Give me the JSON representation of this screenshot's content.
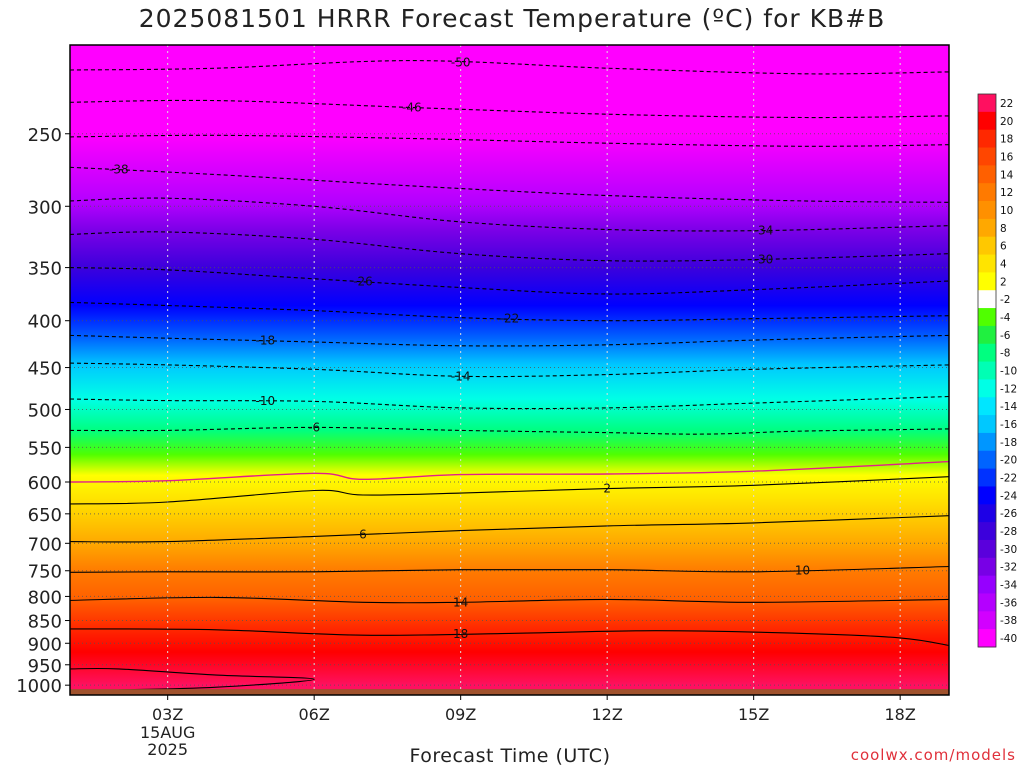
{
  "title": "2025081501 HRRR Forecast Temperature (ºC) for KB#B",
  "xlabel": "Forecast Time (UTC)",
  "credit": "coolwx.com/models",
  "chart_data": {
    "type": "heatmap",
    "title": "2025081501 HRRR Forecast Temperature (ºC) for KB#B",
    "xlabel": "Forecast Time (UTC)",
    "ylabel": "",
    "x_range_hours": [
      1,
      19
    ],
    "x_ticks": [
      {
        "hour": 3,
        "label": "03Z",
        "sub": [
          "15AUG",
          "2025"
        ]
      },
      {
        "hour": 6,
        "label": "06Z",
        "sub": []
      },
      {
        "hour": 9,
        "label": "09Z",
        "sub": []
      },
      {
        "hour": 12,
        "label": "12Z",
        "sub": []
      },
      {
        "hour": 15,
        "label": "15Z",
        "sub": []
      },
      {
        "hour": 18,
        "label": "18Z",
        "sub": []
      }
    ],
    "y_scale": "log-pressure",
    "y_range_hpa": [
      1025,
      200
    ],
    "y_ticks": [
      250,
      300,
      350,
      400,
      450,
      500,
      550,
      600,
      650,
      700,
      750,
      800,
      850,
      900,
      950,
      1000
    ],
    "colorbar": {
      "labels": [
        "22",
        "20",
        "18",
        "16",
        "14",
        "12",
        "10",
        "8",
        "6",
        "4",
        "2",
        "-2",
        "-4",
        "-6",
        "-8",
        "-10",
        "-12",
        "-14",
        "-16",
        "-18",
        "-20",
        "-22",
        "-24",
        "-26",
        "-28",
        "-30",
        "-32",
        "-34",
        "-36",
        "-38",
        "-40"
      ],
      "colors": [
        "#ff1060",
        "#ff0000",
        "#ff2800",
        "#ff4600",
        "#ff6000",
        "#ff7a00",
        "#ff9000",
        "#ffa800",
        "#ffc800",
        "#ffe400",
        "#ffff00",
        "#ffffff",
        "#50ff00",
        "#20f040",
        "#00ff80",
        "#00ffb4",
        "#00ffe6",
        "#00e6ff",
        "#00c8ff",
        "#0096ff",
        "#0064ff",
        "#0032ff",
        "#0000ff",
        "#1e00e6",
        "#3c00dc",
        "#5a00dc",
        "#7800e6",
        "#9600ff",
        "#b400ff",
        "#d200ff",
        "#ff00ff"
      ]
    },
    "isotherms": [
      {
        "value": -50,
        "label": "-50",
        "label_hour": 9.0,
        "dashed": true,
        "levels": [
          [
            1,
            213
          ],
          [
            4,
            212
          ],
          [
            8,
            208
          ],
          [
            12,
            212
          ],
          [
            16,
            215
          ],
          [
            19,
            214
          ]
        ]
      },
      {
        "value": -46,
        "label": "-46",
        "label_hour": 8.0,
        "dashed": true,
        "levels": [
          [
            1,
            231
          ],
          [
            4,
            230
          ],
          [
            8,
            234
          ],
          [
            12,
            238
          ],
          [
            16,
            240
          ],
          [
            19,
            239
          ]
        ]
      },
      {
        "value": -42,
        "label": "",
        "label_hour": 0,
        "dashed": true,
        "levels": [
          [
            1,
            252
          ],
          [
            4,
            251
          ],
          [
            8,
            253
          ],
          [
            12,
            256
          ],
          [
            16,
            258
          ],
          [
            19,
            257
          ]
        ]
      },
      {
        "value": -38,
        "label": "-38",
        "label_hour": 2.0,
        "dashed": true,
        "levels": [
          [
            1,
            272
          ],
          [
            4,
            277
          ],
          [
            8,
            285
          ],
          [
            12,
            292
          ],
          [
            16,
            296
          ],
          [
            19,
            297
          ]
        ]
      },
      {
        "value": -34,
        "label": "-34",
        "label_hour": 15.2,
        "dashed": true,
        "levels": [
          [
            1,
            296
          ],
          [
            3,
            294
          ],
          [
            6,
            300
          ],
          [
            9,
            312
          ],
          [
            12,
            318
          ],
          [
            15,
            319
          ],
          [
            19,
            315
          ]
        ]
      },
      {
        "value": -30,
        "label": "-30",
        "label_hour": 15.2,
        "dashed": true,
        "levels": [
          [
            1,
            322
          ],
          [
            3,
            320
          ],
          [
            6,
            326
          ],
          [
            9,
            338
          ],
          [
            12,
            344
          ],
          [
            15,
            343
          ],
          [
            19,
            338
          ]
        ]
      },
      {
        "value": -26,
        "label": "-26",
        "label_hour": 7.0,
        "dashed": true,
        "levels": [
          [
            1,
            350
          ],
          [
            3,
            352
          ],
          [
            6,
            360
          ],
          [
            9,
            368
          ],
          [
            12,
            374
          ],
          [
            15,
            370
          ],
          [
            19,
            362
          ]
        ]
      },
      {
        "value": -22,
        "label": "-22",
        "label_hour": 10.0,
        "dashed": true,
        "levels": [
          [
            1,
            382
          ],
          [
            3,
            385
          ],
          [
            6,
            390
          ],
          [
            9,
            397
          ],
          [
            12,
            400
          ],
          [
            15,
            398
          ],
          [
            19,
            395
          ]
        ]
      },
      {
        "value": -18,
        "label": "-18",
        "label_hour": 5.0,
        "dashed": true,
        "levels": [
          [
            1,
            415
          ],
          [
            3,
            418
          ],
          [
            6,
            422
          ],
          [
            9,
            426
          ],
          [
            12,
            425
          ],
          [
            15,
            420
          ],
          [
            19,
            415
          ]
        ]
      },
      {
        "value": -14,
        "label": "-14",
        "label_hour": 9.0,
        "dashed": true,
        "levels": [
          [
            1,
            445
          ],
          [
            3,
            447
          ],
          [
            6,
            452
          ],
          [
            9,
            460
          ],
          [
            12,
            458
          ],
          [
            15,
            452
          ],
          [
            19,
            447
          ]
        ]
      },
      {
        "value": -10,
        "label": "-10",
        "label_hour": 5.0,
        "dashed": true,
        "levels": [
          [
            1,
            487
          ],
          [
            3,
            489
          ],
          [
            6,
            490
          ],
          [
            9,
            498
          ],
          [
            12,
            498
          ],
          [
            15,
            492
          ],
          [
            19,
            484
          ]
        ]
      },
      {
        "value": -6,
        "label": "-6",
        "label_hour": 6.0,
        "dashed": true,
        "levels": [
          [
            1,
            527
          ],
          [
            3,
            527
          ],
          [
            6,
            523
          ],
          [
            9,
            527
          ],
          [
            12,
            530
          ],
          [
            14,
            532
          ],
          [
            16,
            528
          ],
          [
            19,
            525
          ]
        ]
      },
      {
        "value": 2,
        "label": "2",
        "label_hour": 12.0,
        "dashed": false,
        "levels": [
          [
            1,
            634
          ],
          [
            3,
            631
          ],
          [
            6,
            613
          ],
          [
            7,
            620
          ],
          [
            9,
            617
          ],
          [
            12,
            610
          ],
          [
            15,
            605
          ],
          [
            19,
            592
          ]
        ]
      },
      {
        "value": 6,
        "label": "6",
        "label_hour": 7.0,
        "dashed": false,
        "levels": [
          [
            1,
            697
          ],
          [
            3,
            697
          ],
          [
            6,
            688
          ],
          [
            9,
            678
          ],
          [
            12,
            670
          ],
          [
            15,
            665
          ],
          [
            19,
            653
          ]
        ]
      },
      {
        "value": 10,
        "label": "10",
        "label_hour": 16.0,
        "dashed": false,
        "levels": [
          [
            1,
            753
          ],
          [
            3,
            752
          ],
          [
            6,
            752
          ],
          [
            9,
            748
          ],
          [
            12,
            748
          ],
          [
            15,
            752
          ],
          [
            19,
            742
          ]
        ]
      },
      {
        "value": 14,
        "label": "14",
        "label_hour": 9.0,
        "dashed": false,
        "levels": [
          [
            1,
            808
          ],
          [
            4,
            802
          ],
          [
            7,
            812
          ],
          [
            9,
            812
          ],
          [
            12,
            806
          ],
          [
            15,
            812
          ],
          [
            19,
            806
          ]
        ]
      },
      {
        "value": 18,
        "label": "18",
        "label_hour": 9.0,
        "dashed": false,
        "levels": [
          [
            1,
            868
          ],
          [
            4,
            870
          ],
          [
            7,
            882
          ],
          [
            10,
            878
          ],
          [
            13,
            872
          ],
          [
            16,
            878
          ],
          [
            18,
            888
          ],
          [
            19,
            905
          ]
        ]
      },
      {
        "value": 20,
        "label": "",
        "label_hour": 0,
        "dashed": false,
        "levels": [
          [
            1,
            960
          ],
          [
            2,
            960
          ],
          [
            4,
            975
          ],
          [
            6,
            985
          ],
          [
            4,
            1005
          ],
          [
            2,
            1012
          ]
        ]
      }
    ],
    "freezing_level_hpa": [
      [
        1,
        600
      ],
      [
        3,
        598
      ],
      [
        6,
        587
      ],
      [
        7,
        596
      ],
      [
        9,
        589
      ],
      [
        12,
        588
      ],
      [
        15,
        584
      ],
      [
        19,
        570
      ]
    ],
    "ground_hpa": 1010
  }
}
